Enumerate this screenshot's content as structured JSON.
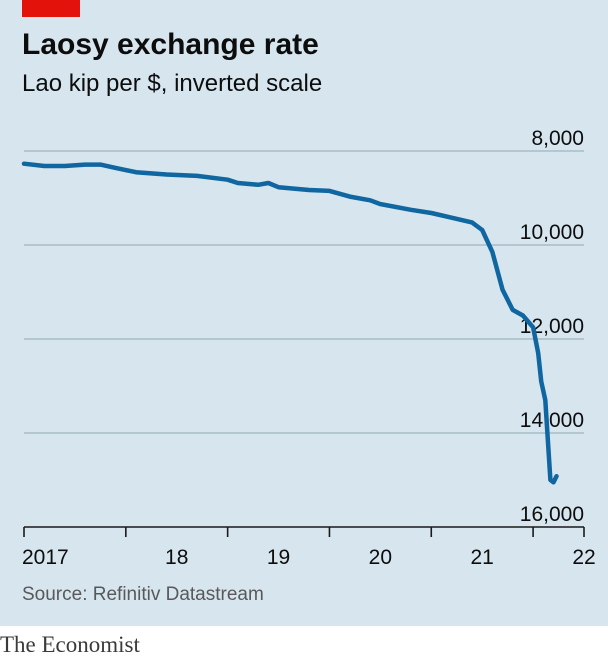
{
  "header": {
    "title": "Laosy exchange rate",
    "subtitle": "Lao kip per $, inverted scale"
  },
  "footer": {
    "source": "Source: Refinitiv Datastream",
    "brand": "The Economist"
  },
  "colors": {
    "background": "#d6e5ee",
    "line": "#1066a0",
    "accent": "#e3120b",
    "grid": "#9fb3bf"
  },
  "chart_data": {
    "type": "line",
    "title": "Laosy exchange rate",
    "subtitle": "Lao kip per $, inverted scale",
    "ylabel": "",
    "xlabel": "",
    "y_inverted": true,
    "ylim": [
      8000,
      16000
    ],
    "yticks": [
      8000,
      10000,
      12000,
      14000,
      16000
    ],
    "ytick_labels": [
      "8,000",
      "10,000",
      "12,000",
      "14,000",
      "16,000"
    ],
    "xlim": [
      2017.0,
      2022.5
    ],
    "xticks": [
      2017,
      2018,
      2019,
      2020,
      2021,
      2022
    ],
    "xtick_labels": [
      "2017",
      "18",
      "19",
      "20",
      "21",
      "22"
    ],
    "grid": "horizontal",
    "series": [
      {
        "values": [
          [
            2017.0,
            8270
          ],
          [
            2017.2,
            8320
          ],
          [
            2017.4,
            8320
          ],
          [
            2017.6,
            8290
          ],
          [
            2017.75,
            8290
          ],
          [
            2017.9,
            8360
          ],
          [
            2018.1,
            8450
          ],
          [
            2018.4,
            8500
          ],
          [
            2018.7,
            8530
          ],
          [
            2019.0,
            8610
          ],
          [
            2019.1,
            8680
          ],
          [
            2019.3,
            8720
          ],
          [
            2019.4,
            8680
          ],
          [
            2019.5,
            8770
          ],
          [
            2019.8,
            8830
          ],
          [
            2020.0,
            8850
          ],
          [
            2020.2,
            8970
          ],
          [
            2020.4,
            9050
          ],
          [
            2020.5,
            9130
          ],
          [
            2020.8,
            9250
          ],
          [
            2021.0,
            9320
          ],
          [
            2021.2,
            9420
          ],
          [
            2021.4,
            9520
          ],
          [
            2021.5,
            9680
          ],
          [
            2021.6,
            10150
          ],
          [
            2021.7,
            10950
          ],
          [
            2021.8,
            11380
          ],
          [
            2021.9,
            11500
          ],
          [
            2022.0,
            11750
          ],
          [
            2022.05,
            12300
          ],
          [
            2022.08,
            12900
          ],
          [
            2022.12,
            13300
          ],
          [
            2022.17,
            15000
          ],
          [
            2022.2,
            15050
          ],
          [
            2022.23,
            14920
          ]
        ]
      }
    ]
  }
}
